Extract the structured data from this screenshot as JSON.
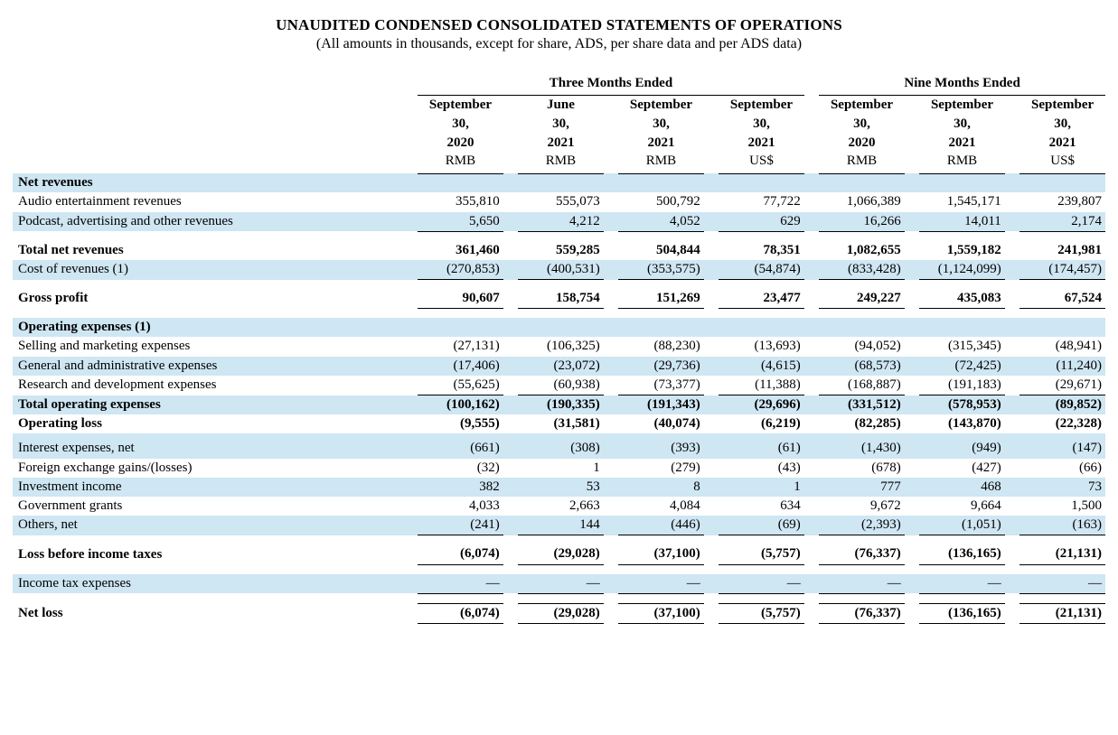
{
  "title": "UNAUDITED CONDENSED CONSOLIDATED STATEMENTS OF OPERATIONS",
  "subtitle": "(All amounts in thousands, except for share, ADS, per share data and per ADS data)",
  "colors": {
    "shade": "#cfe6f3",
    "text": "#000000",
    "border": "#000000"
  },
  "period_groups": [
    {
      "label": "Three Months Ended",
      "cols": 4
    },
    {
      "label": "Nine Months Ended",
      "cols": 3
    }
  ],
  "columns": [
    {
      "l1": "September 30, 2020",
      "l1a": "September",
      "l1b": "30,",
      "l1c": "2020",
      "l2": "RMB"
    },
    {
      "l1": "June 30, 2021",
      "l1a": "June",
      "l1b": "30,",
      "l1c": "2021",
      "l2": "RMB"
    },
    {
      "l1": "September 30, 2021",
      "l1a": "September",
      "l1b": "30,",
      "l1c": "2021",
      "l2": "RMB"
    },
    {
      "l1": "September 30, 2021",
      "l1a": "September",
      "l1b": "30,",
      "l1c": "2021",
      "l2": "US$"
    },
    {
      "l1": "September 30, 2020",
      "l1a": "September",
      "l1b": "30,",
      "l1c": "2020",
      "l2": "RMB"
    },
    {
      "l1": "September 30, 2021",
      "l1a": "September",
      "l1b": "30,",
      "l1c": "2021",
      "l2": "RMB"
    },
    {
      "l1": "September 30, 2021",
      "l1a": "September",
      "l1b": "30,",
      "l1c": "2021",
      "l2": "US$"
    }
  ],
  "rows": [
    {
      "label": "Net revenues",
      "bold": true,
      "shade": true,
      "section": true
    },
    {
      "label": "Audio entertainment revenues",
      "v": [
        "355,810",
        "555,073",
        "500,792",
        "77,722",
        "1,066,389",
        "1,545,171",
        "239,807"
      ]
    },
    {
      "label": "Podcast, advertising and other revenues",
      "v": [
        "5,650",
        "4,212",
        "4,052",
        "629",
        "16,266",
        "14,011",
        "2,174"
      ],
      "shade": true,
      "underline": true
    },
    {
      "spacer": true
    },
    {
      "label": "Total net revenues",
      "bold": true,
      "v": [
        "361,460",
        "559,285",
        "504,844",
        "78,351",
        "1,082,655",
        "1,559,182",
        "241,981"
      ]
    },
    {
      "label": "Cost of revenues (1)",
      "shade": true,
      "v": [
        "(270,853)",
        "(400,531)",
        "(353,575)",
        "(54,874)",
        "(833,428)",
        "(1,124,099)",
        "(174,457)"
      ],
      "underline": true
    },
    {
      "spacer": true
    },
    {
      "label": "Gross profit",
      "bold": true,
      "v": [
        "90,607",
        "158,754",
        "151,269",
        "23,477",
        "249,227",
        "435,083",
        "67,524"
      ],
      "underline": true
    },
    {
      "spacer": true
    },
    {
      "label": "Operating expenses (1)",
      "bold": true,
      "shade": true,
      "section": true
    },
    {
      "label": "Selling and marketing expenses",
      "v": [
        "(27,131)",
        "(106,325)",
        "(88,230)",
        "(13,693)",
        "(94,052)",
        "(315,345)",
        "(48,941)"
      ]
    },
    {
      "label": "General and administrative expenses",
      "shade": true,
      "v": [
        "(17,406)",
        "(23,072)",
        "(29,736)",
        "(4,615)",
        "(68,573)",
        "(72,425)",
        "(11,240)"
      ]
    },
    {
      "label": "Research and development expenses",
      "v": [
        "(55,625)",
        "(60,938)",
        "(73,377)",
        "(11,388)",
        "(168,887)",
        "(191,183)",
        "(29,671)"
      ],
      "underline": true
    },
    {
      "label": "Total operating expenses",
      "bold": true,
      "shade": true,
      "v": [
        "(100,162)",
        "(190,335)",
        "(191,343)",
        "(29,696)",
        "(331,512)",
        "(578,953)",
        "(89,852)"
      ]
    },
    {
      "label": "Operating loss",
      "bold": true,
      "v": [
        "(9,555)",
        "(31,581)",
        "(40,074)",
        "(6,219)",
        "(82,285)",
        "(143,870)",
        "(22,328)"
      ]
    },
    {
      "sm_spacer": true,
      "shade": true
    },
    {
      "label": "Interest expenses, net",
      "shade": true,
      "v": [
        "(661)",
        "(308)",
        "(393)",
        "(61)",
        "(1,430)",
        "(949)",
        "(147)"
      ]
    },
    {
      "label": "Foreign exchange gains/(losses)",
      "v": [
        "(32)",
        "1",
        "(279)",
        "(43)",
        "(678)",
        "(427)",
        "(66)"
      ]
    },
    {
      "label": "Investment income",
      "shade": true,
      "v": [
        "382",
        "53",
        "8",
        "1",
        "777",
        "468",
        "73"
      ]
    },
    {
      "label": "Government grants",
      "v": [
        "4,033",
        "2,663",
        "4,084",
        "634",
        "9,672",
        "9,664",
        "1,500"
      ]
    },
    {
      "label": "Others, net",
      "shade": true,
      "v": [
        "(241)",
        "144",
        "(446)",
        "(69)",
        "(2,393)",
        "(1,051)",
        "(163)"
      ],
      "underline": true
    },
    {
      "spacer": true
    },
    {
      "label": "Loss before income taxes",
      "bold": true,
      "v": [
        "(6,074)",
        "(29,028)",
        "(37,100)",
        "(5,757)",
        "(76,337)",
        "(136,165)",
        "(21,131)"
      ],
      "underline": true
    },
    {
      "spacer": true
    },
    {
      "label": "Income tax expenses",
      "shade": true,
      "v": [
        "—",
        "—",
        "—",
        "—",
        "—",
        "—",
        "—"
      ],
      "underline": true
    },
    {
      "spacer": true
    },
    {
      "label": "Net loss",
      "bold": true,
      "v": [
        "(6,074)",
        "(29,028)",
        "(37,100)",
        "(5,757)",
        "(76,337)",
        "(136,165)",
        "(21,131)"
      ],
      "underline": true,
      "topline": true
    }
  ]
}
